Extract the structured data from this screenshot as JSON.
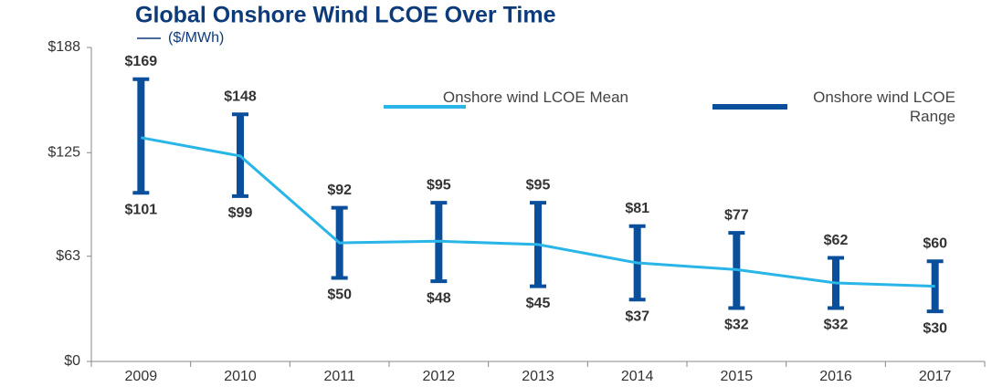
{
  "chart_data": {
    "type": "range_line",
    "title": "Global Onshore Wind LCOE Over Time",
    "subtitle": "($/MWh)",
    "categories": [
      "2009",
      "2010",
      "2011",
      "2012",
      "2013",
      "2014",
      "2015",
      "2016",
      "2017"
    ],
    "ylim": [
      0,
      188
    ],
    "yticks": [
      {
        "value": 0,
        "label": "$0"
      },
      {
        "value": 63,
        "label": "$63"
      },
      {
        "value": 125,
        "label": "$125"
      },
      {
        "value": 188,
        "label": "$188"
      }
    ],
    "series": [
      {
        "name": "Onshore wind LCOE Mean",
        "color": "#29b5e8",
        "values": [
          134,
          123,
          71,
          72,
          70,
          59,
          55,
          47,
          45
        ]
      },
      {
        "name": "Onshore wind LCOE Range",
        "color": "#0a4f9c",
        "high": [
          169,
          148,
          92,
          95,
          95,
          81,
          77,
          62,
          60
        ],
        "high_labels": [
          "$169",
          "$148",
          "$92",
          "$95",
          "$95",
          "$81",
          "$77",
          "$62",
          "$60"
        ],
        "low": [
          101,
          99,
          50,
          48,
          45,
          37,
          32,
          32,
          30
        ],
        "low_labels": [
          "$101",
          "$99",
          "$50",
          "$48",
          "$45",
          "$37",
          "$32",
          "$32",
          "$30"
        ]
      }
    ]
  }
}
